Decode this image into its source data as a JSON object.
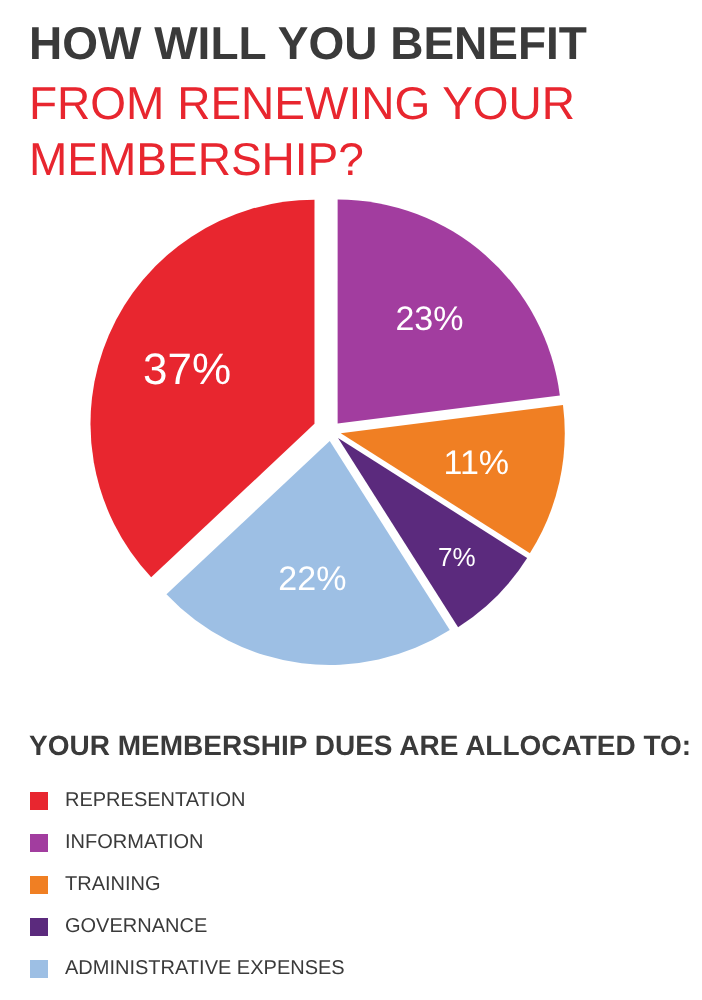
{
  "chart_data": {
    "type": "pie",
    "title": "HOW WILL YOU BENEFIT",
    "subtitle": "FROM RENEWING YOUR MEMBERSHIP?",
    "legend_title": "YOUR MEMBERSHIP DUES ARE ALLOCATED TO:",
    "categories": [
      "REPRESENTATION",
      "INFORMATION",
      "TRAINING",
      "GOVERNANCE",
      "ADMINISTRATIVE EXPENSES"
    ],
    "values": [
      37,
      23,
      11,
      7,
      22
    ],
    "colors": [
      "#e8262f",
      "#a23d9f",
      "#f07f23",
      "#5b2a7d",
      "#9dbfe4"
    ],
    "value_labels": [
      "37%",
      "23%",
      "11%",
      "7%",
      "22%"
    ],
    "legend": "bottom"
  }
}
